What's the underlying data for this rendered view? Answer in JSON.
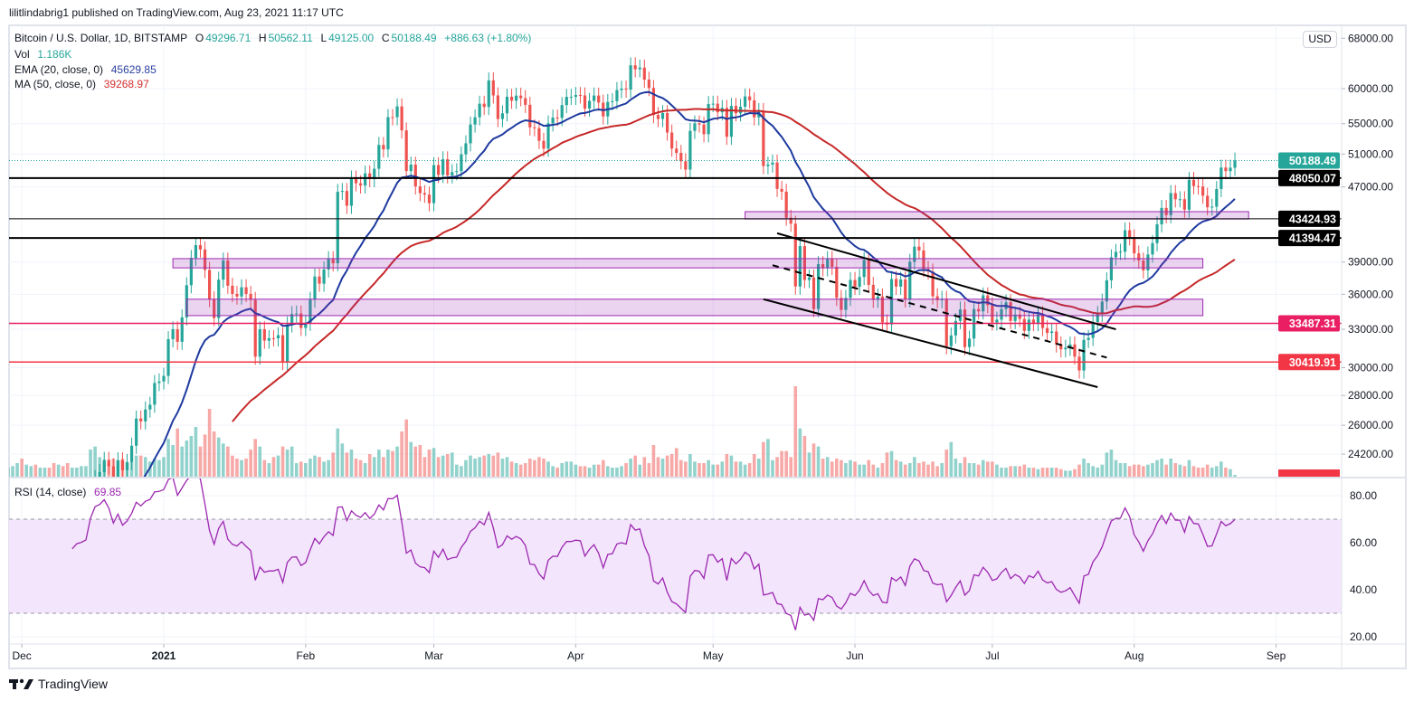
{
  "header": {
    "published": "lilitlindabrig1 published on TradingView.com, Aug 23, 2021 11:17 UTC"
  },
  "legend": {
    "symbol": "Bitcoin / U.S. Dollar, 1D, BITSTAMP",
    "o_label": "O",
    "open": "49296.71",
    "h_label": "H",
    "high": "50562.11",
    "l_label": "L",
    "low": "49125.00",
    "c_label": "C",
    "close": "50188.49",
    "change": "+886.63 (+1.80%)",
    "vol_label": "Vol",
    "vol": "1.186K",
    "ema_label": "EMA (20, close, 0)",
    "ema": "45629.85",
    "ma_label": "MA (50, close, 0)",
    "ma": "39268.97",
    "rsi_label": "RSI (14, close)",
    "rsi": "69.85"
  },
  "currency_badge": "USD",
  "footer": {
    "logo": "TradingView"
  },
  "colors": {
    "up": "#26a69a",
    "down": "#ef5350",
    "ema": "#1e3a9f",
    "ma": "#c62828",
    "rsi": "#9c27b0",
    "rsi_band": "#f3e5fc",
    "zone_fill": "rgba(156,39,176,0.2)",
    "zone_border": "#9c27b0"
  },
  "chart_data": {
    "type": "candlestick",
    "scale": "log",
    "grid": true,
    "price_axis_ticks": [
      68000,
      60000,
      55000,
      51000,
      47000,
      39000,
      36000,
      33000,
      30000,
      28000,
      26000,
      24200
    ],
    "time_axis_labels": [
      {
        "label": "Dec",
        "date": "2020-12-01"
      },
      {
        "label": "2021",
        "date": "2021-01-01",
        "bold": true
      },
      {
        "label": "Feb",
        "date": "2021-02-01"
      },
      {
        "label": "Mar",
        "date": "2021-03-01"
      },
      {
        "label": "Apr",
        "date": "2021-04-01"
      },
      {
        "label": "May",
        "date": "2021-05-01"
      },
      {
        "label": "Jun",
        "date": "2021-06-01"
      },
      {
        "label": "Jul",
        "date": "2021-07-01"
      },
      {
        "label": "Aug",
        "date": "2021-08-01"
      },
      {
        "label": "Sep",
        "date": "2021-09-01"
      }
    ],
    "last_open": 49296.71,
    "months": [
      {
        "month": "2020-11",
        "first_day": 28,
        "close": [
          17700,
          18180,
          19630
        ],
        "volume": [
          6,
          7,
          9
        ]
      },
      {
        "month": "2020-12",
        "first_day": 1,
        "close": [
          18800,
          19220,
          19450,
          18680,
          19160,
          19380,
          19170,
          18320,
          18550,
          18250,
          18040,
          18800,
          19170,
          19270,
          19440,
          21340,
          22800,
          23140,
          23860,
          23480,
          22750,
          23830,
          23250,
          23730,
          24710,
          26440,
          26250,
          27040,
          27360,
          28880,
          28990
        ],
        "volume": [
          12,
          8,
          7,
          8,
          6,
          6,
          6,
          9,
          8,
          7,
          9,
          6,
          6,
          7,
          7,
          18,
          20,
          13,
          10,
          9,
          12,
          11,
          12,
          9,
          10,
          14,
          14,
          13,
          10,
          12,
          11
        ]
      },
      {
        "month": "2021-01",
        "first_day": 1,
        "close": [
          29390,
          32200,
          33000,
          31990,
          33990,
          36820,
          39400,
          40670,
          40240,
          38240,
          35570,
          33930,
          37330,
          39150,
          36770,
          36030,
          35800,
          36630,
          36030,
          35500,
          30830,
          33000,
          32080,
          32280,
          32270,
          32520,
          30430,
          33400,
          34270,
          34320,
          33110
        ],
        "volume": [
          13,
          25,
          21,
          32,
          20,
          24,
          27,
          33,
          20,
          28,
          45,
          30,
          26,
          22,
          20,
          14,
          12,
          11,
          12,
          18,
          25,
          20,
          11,
          9,
          13,
          14,
          20,
          18,
          20,
          9,
          10
        ]
      },
      {
        "month": "2021-02",
        "first_day": 1,
        "close": [
          33540,
          35520,
          37620,
          36960,
          38290,
          39280,
          38880,
          46430,
          46530,
          44850,
          48000,
          47430,
          47170,
          48610,
          47920,
          49170,
          52170,
          51600,
          55900,
          55890,
          57410,
          54090,
          48890,
          49680,
          47060,
          46280,
          46110,
          45140
        ],
        "volume": [
          9,
          12,
          14,
          13,
          10,
          11,
          16,
          32,
          22,
          16,
          18,
          12,
          11,
          9,
          15,
          13,
          18,
          13,
          18,
          17,
          20,
          30,
          38,
          23,
          20,
          21,
          13,
          18
        ]
      },
      {
        "month": "2021-03",
        "first_day": 1,
        "close": [
          49620,
          48430,
          50340,
          48370,
          48760,
          48880,
          50970,
          52380,
          54880,
          55880,
          57800,
          57330,
          61240,
          59000,
          55640,
          56430,
          58800,
          58230,
          58970,
          58600,
          57640,
          54500,
          54380,
          52700,
          51690,
          55040,
          55840,
          55790,
          57600,
          58790,
          58790
        ],
        "volume": [
          19,
          13,
          14,
          15,
          16,
          8,
          7,
          11,
          14,
          12,
          13,
          14,
          15,
          14,
          16,
          12,
          13,
          10,
          9,
          8,
          9,
          12,
          11,
          13,
          12,
          10,
          7,
          6,
          9,
          10,
          10
        ]
      },
      {
        "month": "2021-04",
        "first_day": 1,
        "close": [
          59060,
          59000,
          57100,
          58200,
          58980,
          57950,
          56000,
          58050,
          58160,
          59790,
          60010,
          59860,
          63580,
          62960,
          63220,
          61360,
          60100,
          56200,
          55650,
          56470,
          53800,
          51700,
          51150,
          50100,
          49070,
          54020,
          55040,
          54880,
          53580,
          57750
        ],
        "volume": [
          8,
          7,
          7,
          6,
          8,
          8,
          11,
          7,
          6,
          6,
          7,
          9,
          12,
          14,
          8,
          13,
          9,
          21,
          13,
          12,
          14,
          15,
          19,
          11,
          10,
          15,
          10,
          9,
          9,
          11
        ]
      },
      {
        "month": "2021-05",
        "first_day": 1,
        "close": [
          57800,
          56580,
          57200,
          53240,
          57480,
          56430,
          57360,
          58850,
          58280,
          55870,
          56760,
          49500,
          49690,
          49930,
          46770,
          46450,
          43540,
          42900,
          36700,
          40570,
          37300,
          37530,
          34700,
          38800,
          38400,
          39300,
          38540,
          35680,
          34630,
          35680,
          37300
        ],
        "volume": [
          8,
          8,
          10,
          15,
          14,
          10,
          10,
          8,
          9,
          15,
          12,
          23,
          25,
          11,
          13,
          17,
          17,
          13,
          60,
          32,
          27,
          16,
          22,
          20,
          12,
          13,
          10,
          12,
          11,
          9,
          11
        ]
      },
      {
        "month": "2021-06",
        "first_day": 1,
        "close": [
          36680,
          37580,
          39200,
          36850,
          35520,
          35800,
          33570,
          33400,
          37390,
          36690,
          37340,
          35550,
          39020,
          40520,
          40140,
          38340,
          38090,
          35820,
          35480,
          35600,
          31640,
          32500,
          33690,
          34660,
          31570,
          32250,
          34700,
          34500,
          35900,
          35040
        ],
        "volume": [
          10,
          8,
          8,
          11,
          8,
          6,
          9,
          16,
          17,
          11,
          10,
          8,
          9,
          13,
          9,
          10,
          8,
          10,
          7,
          9,
          18,
          23,
          12,
          9,
          13,
          9,
          9,
          8,
          11,
          10
        ]
      },
      {
        "month": "2021-07",
        "first_day": 1,
        "close": [
          33570,
          33800,
          34700,
          35290,
          33690,
          34230,
          33860,
          32870,
          33810,
          33510,
          34260,
          33100,
          32700,
          32820,
          31780,
          31400,
          31520,
          31780,
          30830,
          29790,
          32140,
          32300,
          33600,
          34280,
          35350,
          37270,
          39460,
          40000,
          40020,
          42200,
          41480
        ],
        "volume": [
          10,
          8,
          6,
          6,
          7,
          7,
          7,
          8,
          6,
          6,
          5,
          6,
          6,
          6,
          6,
          5,
          4,
          4,
          5,
          8,
          12,
          9,
          7,
          6,
          8,
          16,
          18,
          11,
          9,
          9,
          7
        ]
      },
      {
        "month": "2021-08",
        "first_day": 1,
        "close": [
          39850,
          39150,
          38200,
          39740,
          40870,
          42830,
          44610,
          43820,
          46290,
          45580,
          45590,
          44420,
          47830,
          47100,
          47050,
          45990,
          44680,
          44750,
          46760,
          49320,
          48880,
          49300,
          50188.49
        ],
        "volume": [
          8,
          8,
          7,
          8,
          9,
          11,
          12,
          8,
          12,
          9,
          8,
          7,
          11,
          7,
          6,
          6,
          8,
          6,
          7,
          10,
          6,
          5,
          1.186
        ]
      }
    ],
    "horizontal_levels": [
      {
        "price": 50188.49,
        "label": "50188.49",
        "color": "#26a69a",
        "style": "dotted",
        "kind": "last-price"
      },
      {
        "price": 48050.07,
        "label": "48050.07",
        "color": "#000000",
        "width": 2
      },
      {
        "price": 43424.93,
        "label": "43424.93",
        "color": "#000000",
        "width": 1
      },
      {
        "price": 41394.47,
        "label": "41394.47",
        "color": "#000000",
        "width": 2
      },
      {
        "price": 33487.31,
        "label": "33487.31",
        "color": "#e91e63",
        "width": 1.5
      },
      {
        "price": 30419.91,
        "label": "30419.91",
        "color": "#f23645",
        "width": 1.5
      }
    ],
    "zones": [
      {
        "from": "2021-01-03",
        "to": "2021-08-16",
        "top": 39330,
        "bottom": 38440
      },
      {
        "from": "2021-01-06",
        "to": "2021-08-16",
        "top": 35560,
        "bottom": 34140
      },
      {
        "from": "2021-05-08",
        "to": "2021-08-26",
        "top": 44200,
        "bottom": 43400
      }
    ],
    "trend_lines": [
      {
        "from": [
          "2021-05-15",
          41890
        ],
        "to": [
          "2021-07-28",
          33000
        ],
        "style": "solid"
      },
      {
        "from": [
          "2021-05-12",
          35560
        ],
        "to": [
          "2021-07-24",
          28580
        ],
        "style": "solid"
      },
      {
        "from": [
          "2021-05-14",
          38690
        ],
        "to": [
          "2021-07-26",
          30760
        ],
        "style": "dashed"
      }
    ],
    "rsi": {
      "period": 14,
      "ticks": [
        80,
        60,
        40,
        20
      ],
      "upper": 70,
      "lower": 30,
      "ylim": [
        20,
        80
      ]
    },
    "ema_period": 20,
    "ma_period": 50
  }
}
